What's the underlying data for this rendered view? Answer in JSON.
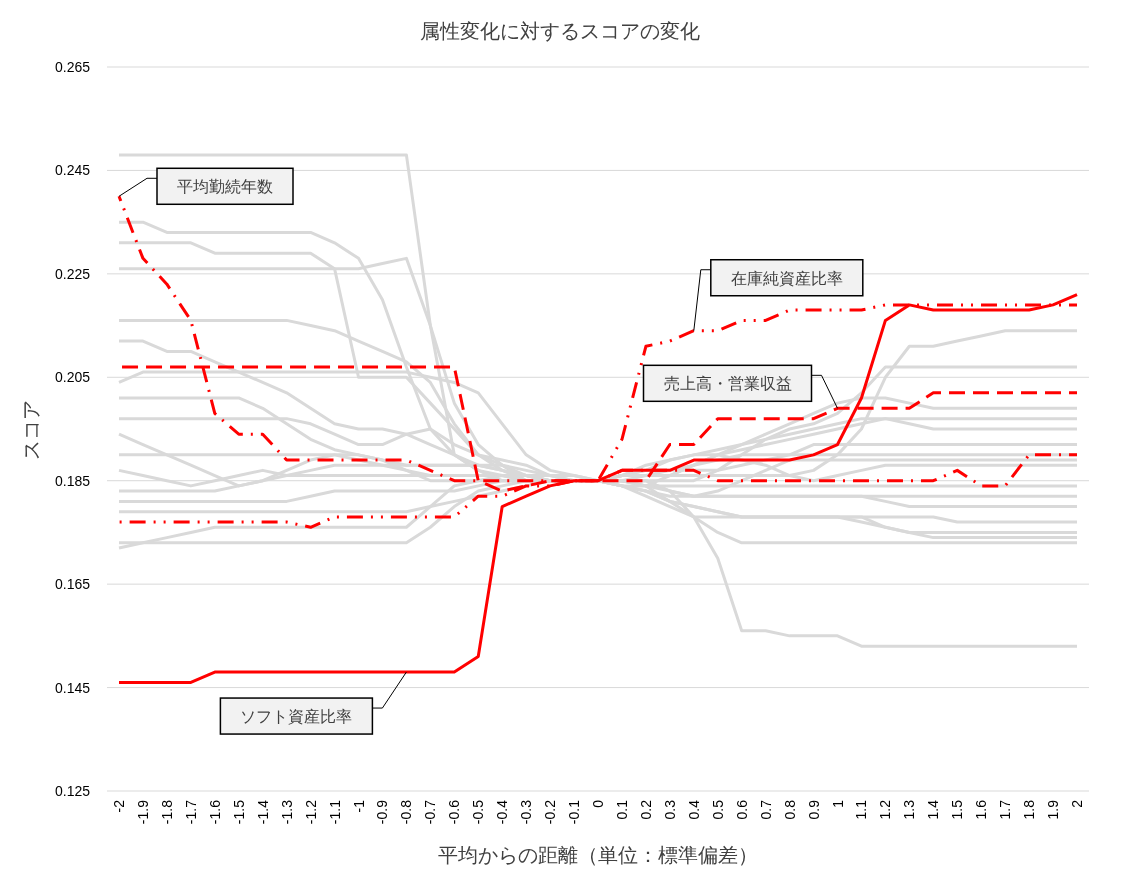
{
  "chart_data": {
    "type": "line",
    "title": "属性変化に対するスコアの変化",
    "xlabel": "平均からの距離（単位：標準偏差）",
    "ylabel": "スコア",
    "categories": [
      "-2",
      "-1.9",
      "-1.8",
      "-1.7",
      "-1.6",
      "-1.5",
      "-1.4",
      "-1.3",
      "-1.2",
      "-1.1",
      "-1",
      "-0.9",
      "-0.8",
      "-0.7",
      "-0.6",
      "-0.5",
      "-0.4",
      "-0.3",
      "-0.2",
      "-0.1",
      "0",
      "0.1",
      "0.2",
      "0.3",
      "0.4",
      "0.5",
      "0.6",
      "0.7",
      "0.8",
      "0.9",
      "1",
      "1.1",
      "1.2",
      "1.3",
      "1.4",
      "1.5",
      "1.6",
      "1.7",
      "1.8",
      "1.9",
      "2"
    ],
    "ylim": [
      0.125,
      0.265
    ],
    "yticks": [
      0.125,
      0.145,
      0.165,
      0.185,
      0.205,
      0.225,
      0.245,
      0.265
    ],
    "grid": "y",
    "series": [
      {
        "color": "#d9d9d9",
        "values": [
          0.248,
          0.248,
          0.248,
          0.248,
          0.248,
          0.248,
          0.248,
          0.248,
          0.248,
          0.248,
          0.248,
          0.248,
          0.248,
          0.215,
          0.19,
          0.187,
          0.186,
          0.186,
          0.185,
          0.185,
          0.185,
          0.185,
          0.185,
          0.183,
          0.178,
          0.17,
          0.156,
          0.156,
          0.155,
          0.155,
          0.155,
          0.153,
          0.153,
          0.153,
          0.153,
          0.153,
          0.153,
          0.153,
          0.153,
          0.153,
          0.153
        ]
      },
      {
        "color": "#d9d9d9",
        "values": [
          0.235,
          0.235,
          0.233,
          0.233,
          0.233,
          0.233,
          0.233,
          0.233,
          0.233,
          0.231,
          0.228,
          0.22,
          0.207,
          0.195,
          0.19,
          0.187,
          0.185,
          0.185,
          0.185,
          0.185,
          0.185,
          0.186,
          0.186,
          0.186,
          0.186,
          0.186,
          0.186,
          0.186,
          0.186,
          0.187,
          0.19,
          0.195,
          0.205,
          0.211,
          0.211,
          0.212,
          0.213,
          0.214,
          0.214,
          0.214,
          0.214
        ]
      },
      {
        "color": "#d9d9d9",
        "values": [
          0.231,
          0.231,
          0.231,
          0.231,
          0.229,
          0.229,
          0.229,
          0.229,
          0.229,
          0.226,
          0.205,
          0.205,
          0.205,
          0.2,
          0.195,
          0.19,
          0.188,
          0.186,
          0.185,
          0.185,
          0.185,
          0.185,
          0.185,
          0.185,
          0.185,
          0.187,
          0.19,
          0.193,
          0.195,
          0.196,
          0.198,
          0.202,
          0.207,
          0.207,
          0.207,
          0.207,
          0.207,
          0.207,
          0.207,
          0.207,
          0.207
        ]
      },
      {
        "color": "#d9d9d9",
        "values": [
          0.226,
          0.226,
          0.226,
          0.226,
          0.226,
          0.226,
          0.226,
          0.226,
          0.226,
          0.226,
          0.226,
          0.227,
          0.228,
          0.215,
          0.2,
          0.192,
          0.188,
          0.185,
          0.185,
          0.185,
          0.185,
          0.186,
          0.186,
          0.186,
          0.188,
          0.19,
          0.192,
          0.194,
          0.196,
          0.198,
          0.2,
          0.201,
          0.201,
          0.2,
          0.199,
          0.199,
          0.199,
          0.199,
          0.199,
          0.199,
          0.199
        ]
      },
      {
        "color": "#d9d9d9",
        "values": [
          0.216,
          0.216,
          0.216,
          0.216,
          0.216,
          0.216,
          0.216,
          0.216,
          0.215,
          0.214,
          0.212,
          0.21,
          0.208,
          0.204,
          0.196,
          0.19,
          0.187,
          0.185,
          0.185,
          0.185,
          0.185,
          0.186,
          0.188,
          0.189,
          0.19,
          0.191,
          0.192,
          0.193,
          0.194,
          0.195,
          0.196,
          0.197,
          0.197,
          0.197,
          0.197,
          0.197,
          0.197,
          0.197,
          0.197,
          0.197,
          0.197
        ]
      },
      {
        "color": "#d9d9d9",
        "values": [
          0.212,
          0.212,
          0.21,
          0.21,
          0.208,
          0.206,
          0.204,
          0.202,
          0.199,
          0.196,
          0.195,
          0.195,
          0.194,
          0.192,
          0.19,
          0.188,
          0.187,
          0.186,
          0.185,
          0.185,
          0.185,
          0.185,
          0.184,
          0.186,
          0.188,
          0.19,
          0.191,
          0.192,
          0.193,
          0.194,
          0.195,
          0.196,
          0.197,
          0.196,
          0.195,
          0.195,
          0.195,
          0.195,
          0.195,
          0.195,
          0.195
        ]
      },
      {
        "color": "#d9d9d9",
        "values": [
          0.204,
          0.206,
          0.206,
          0.206,
          0.206,
          0.206,
          0.206,
          0.206,
          0.206,
          0.206,
          0.206,
          0.206,
          0.206,
          0.205,
          0.204,
          0.202,
          0.196,
          0.19,
          0.187,
          0.186,
          0.185,
          0.186,
          0.187,
          0.187,
          0.187,
          0.187,
          0.188,
          0.189,
          0.19,
          0.192,
          0.192,
          0.192,
          0.192,
          0.192,
          0.192,
          0.192,
          0.192,
          0.192,
          0.192,
          0.192,
          0.192
        ]
      },
      {
        "color": "#d9d9d9",
        "values": [
          0.201,
          0.201,
          0.201,
          0.201,
          0.201,
          0.201,
          0.199,
          0.196,
          0.193,
          0.191,
          0.19,
          0.189,
          0.188,
          0.188,
          0.188,
          0.188,
          0.188,
          0.187,
          0.186,
          0.185,
          0.185,
          0.185,
          0.186,
          0.187,
          0.188,
          0.189,
          0.19,
          0.19,
          0.19,
          0.19,
          0.19,
          0.19,
          0.19,
          0.19,
          0.19,
          0.19,
          0.19,
          0.19,
          0.19,
          0.19,
          0.19
        ]
      },
      {
        "color": "#d9d9d9",
        "values": [
          0.197,
          0.197,
          0.197,
          0.197,
          0.197,
          0.197,
          0.197,
          0.197,
          0.196,
          0.194,
          0.192,
          0.192,
          0.194,
          0.195,
          0.192,
          0.19,
          0.189,
          0.188,
          0.186,
          0.185,
          0.185,
          0.185,
          0.185,
          0.183,
          0.182,
          0.183,
          0.185,
          0.187,
          0.189,
          0.189,
          0.189,
          0.189,
          0.189,
          0.189,
          0.189,
          0.189,
          0.189,
          0.189,
          0.189,
          0.189,
          0.189
        ]
      },
      {
        "color": "#d9d9d9",
        "values": [
          0.194,
          0.192,
          0.19,
          0.188,
          0.186,
          0.184,
          0.185,
          0.187,
          0.189,
          0.19,
          0.19,
          0.189,
          0.187,
          0.185,
          0.185,
          0.185,
          0.185,
          0.185,
          0.185,
          0.185,
          0.185,
          0.186,
          0.187,
          0.189,
          0.19,
          0.19,
          0.189,
          0.188,
          0.186,
          0.185,
          0.186,
          0.187,
          0.188,
          0.188,
          0.188,
          0.188,
          0.188,
          0.188,
          0.188,
          0.188,
          0.188
        ]
      },
      {
        "color": "#d9d9d9",
        "values": [
          0.19,
          0.19,
          0.19,
          0.19,
          0.19,
          0.19,
          0.19,
          0.19,
          0.19,
          0.19,
          0.189,
          0.188,
          0.187,
          0.186,
          0.186,
          0.186,
          0.186,
          0.185,
          0.185,
          0.185,
          0.185,
          0.184,
          0.184,
          0.184,
          0.184,
          0.184,
          0.184,
          0.184,
          0.184,
          0.184,
          0.184,
          0.184,
          0.184,
          0.184,
          0.184,
          0.184,
          0.184,
          0.184,
          0.184,
          0.184,
          0.184
        ]
      },
      {
        "color": "#d9d9d9",
        "values": [
          0.187,
          0.186,
          0.185,
          0.184,
          0.185,
          0.186,
          0.187,
          0.186,
          0.186,
          0.186,
          0.186,
          0.186,
          0.186,
          0.186,
          0.186,
          0.186,
          0.186,
          0.186,
          0.186,
          0.186,
          0.185,
          0.185,
          0.184,
          0.183,
          0.182,
          0.182,
          0.182,
          0.182,
          0.182,
          0.182,
          0.182,
          0.182,
          0.182,
          0.182,
          0.182,
          0.182,
          0.182,
          0.182,
          0.182,
          0.182,
          0.182
        ]
      },
      {
        "color": "#d9d9d9",
        "values": [
          0.183,
          0.183,
          0.183,
          0.183,
          0.183,
          0.184,
          0.185,
          0.186,
          0.187,
          0.188,
          0.188,
          0.188,
          0.188,
          0.188,
          0.188,
          0.188,
          0.187,
          0.186,
          0.185,
          0.185,
          0.185,
          0.184,
          0.183,
          0.182,
          0.182,
          0.182,
          0.182,
          0.182,
          0.182,
          0.182,
          0.182,
          0.182,
          0.181,
          0.18,
          0.18,
          0.18,
          0.18,
          0.18,
          0.18,
          0.18,
          0.18
        ]
      },
      {
        "color": "#d9d9d9",
        "values": [
          0.181,
          0.181,
          0.181,
          0.181,
          0.181,
          0.181,
          0.181,
          0.181,
          0.182,
          0.183,
          0.183,
          0.183,
          0.183,
          0.183,
          0.183,
          0.184,
          0.185,
          0.185,
          0.185,
          0.185,
          0.185,
          0.184,
          0.183,
          0.181,
          0.18,
          0.179,
          0.178,
          0.178,
          0.178,
          0.178,
          0.178,
          0.178,
          0.178,
          0.178,
          0.178,
          0.177,
          0.177,
          0.177,
          0.177,
          0.177,
          0.177
        ]
      },
      {
        "color": "#d9d9d9",
        "values": [
          0.179,
          0.179,
          0.179,
          0.179,
          0.179,
          0.179,
          0.179,
          0.179,
          0.179,
          0.179,
          0.179,
          0.179,
          0.179,
          0.18,
          0.181,
          0.182,
          0.183,
          0.184,
          0.185,
          0.185,
          0.185,
          0.184,
          0.182,
          0.18,
          0.178,
          0.178,
          0.178,
          0.178,
          0.178,
          0.178,
          0.178,
          0.177,
          0.176,
          0.175,
          0.175,
          0.175,
          0.175,
          0.175,
          0.175,
          0.175,
          0.175
        ]
      },
      {
        "color": "#d9d9d9",
        "values": [
          0.172,
          0.173,
          0.174,
          0.175,
          0.176,
          0.176,
          0.176,
          0.176,
          0.176,
          0.176,
          0.176,
          0.176,
          0.176,
          0.18,
          0.184,
          0.185,
          0.186,
          0.185,
          0.185,
          0.185,
          0.185,
          0.185,
          0.184,
          0.181,
          0.178,
          0.175,
          0.173,
          0.173,
          0.173,
          0.173,
          0.173,
          0.173,
          0.173,
          0.173,
          0.173,
          0.173,
          0.173,
          0.173,
          0.173,
          0.173,
          0.173
        ]
      },
      {
        "color": "#d9d9d9",
        "values": [
          0.173,
          0.173,
          0.173,
          0.173,
          0.173,
          0.173,
          0.173,
          0.173,
          0.173,
          0.173,
          0.173,
          0.173,
          0.173,
          0.176,
          0.18,
          0.183,
          0.184,
          0.185,
          0.185,
          0.185,
          0.185,
          0.184,
          0.183,
          0.181,
          0.18,
          0.179,
          0.178,
          0.178,
          0.178,
          0.178,
          0.178,
          0.178,
          0.176,
          0.175,
          0.174,
          0.174,
          0.174,
          0.174,
          0.174,
          0.174,
          0.174
        ]
      },
      {
        "name": "平均勤続年数",
        "color": "#ff0000",
        "line_style": "dashdot",
        "values": [
          0.24,
          0.228,
          0.223,
          0.216,
          0.198,
          0.194,
          0.194,
          0.189,
          0.189,
          0.189,
          0.189,
          0.189,
          0.189,
          0.187,
          0.185,
          0.185,
          0.185,
          0.185,
          0.185,
          0.185,
          0.185,
          0.187,
          0.187,
          0.187,
          0.187,
          0.185,
          0.185,
          0.185,
          0.185,
          0.185,
          0.185,
          0.185,
          0.185,
          0.185,
          0.185,
          0.187,
          0.184,
          0.184,
          0.19,
          0.19,
          0.19
        ]
      },
      {
        "name": "在庫純資産比率",
        "color": "#ff0000",
        "line_style": "dashdotdot",
        "values": [
          0.177,
          0.177,
          0.177,
          0.177,
          0.177,
          0.177,
          0.177,
          0.177,
          0.176,
          0.178,
          0.178,
          0.178,
          0.178,
          0.178,
          0.178,
          0.182,
          0.182,
          0.184,
          0.184,
          0.185,
          0.185,
          0.193,
          0.211,
          0.212,
          0.214,
          0.214,
          0.216,
          0.216,
          0.218,
          0.218,
          0.218,
          0.218,
          0.219,
          0.219,
          0.219,
          0.219,
          0.219,
          0.219,
          0.219,
          0.219,
          0.219
        ]
      },
      {
        "name": "売上高・営業収益",
        "color": "#ff0000",
        "line_style": "dashed",
        "values": [
          0.207,
          0.207,
          0.207,
          0.207,
          0.207,
          0.207,
          0.207,
          0.207,
          0.207,
          0.207,
          0.207,
          0.207,
          0.207,
          0.207,
          0.207,
          0.185,
          0.183,
          0.184,
          0.185,
          0.185,
          0.185,
          0.185,
          0.185,
          0.192,
          0.192,
          0.197,
          0.197,
          0.197,
          0.197,
          0.197,
          0.199,
          0.199,
          0.199,
          0.199,
          0.202,
          0.202,
          0.202,
          0.202,
          0.202,
          0.202,
          0.202
        ]
      },
      {
        "name": "ソフト資産比率",
        "color": "#ff0000",
        "line_style": "solid",
        "values": [
          0.146,
          0.146,
          0.146,
          0.146,
          0.148,
          0.148,
          0.148,
          0.148,
          0.148,
          0.148,
          0.148,
          0.148,
          0.148,
          0.148,
          0.148,
          0.151,
          0.18,
          0.182,
          0.184,
          0.185,
          0.185,
          0.187,
          0.187,
          0.187,
          0.189,
          0.189,
          0.189,
          0.189,
          0.189,
          0.19,
          0.192,
          0.201,
          0.216,
          0.219,
          0.218,
          0.218,
          0.218,
          0.218,
          0.218,
          0.219,
          0.221
        ]
      }
    ]
  }
}
